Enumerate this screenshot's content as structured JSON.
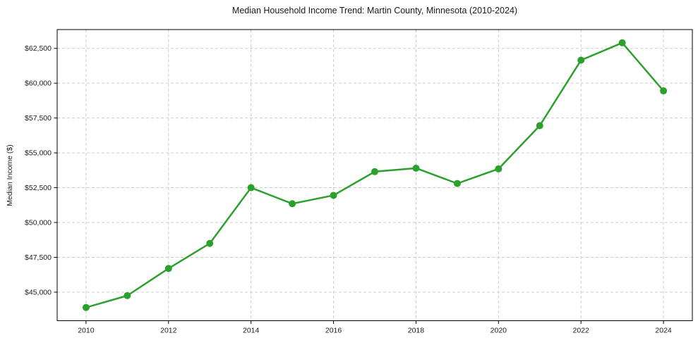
{
  "window": {
    "background_color": "#ffffff"
  },
  "chart_data": {
    "type": "line",
    "title": "Median Household Income Trend: Martin County, Minnesota (2010-2024)",
    "xlabel": "",
    "ylabel": "Median Income ($)",
    "x": [
      2010,
      2011,
      2012,
      2013,
      2014,
      2015,
      2016,
      2017,
      2018,
      2019,
      2020,
      2021,
      2022,
      2023,
      2024
    ],
    "values": [
      43900,
      44750,
      46700,
      48500,
      52500,
      51350,
      51950,
      53650,
      53900,
      52800,
      53850,
      56950,
      61650,
      62900,
      59450
    ],
    "x_ticks": [
      2010,
      2012,
      2014,
      2016,
      2018,
      2020,
      2022,
      2024
    ],
    "x_tick_labels": [
      "2010",
      "2012",
      "2014",
      "2016",
      "2018",
      "2020",
      "2022",
      "2024"
    ],
    "y_ticks": [
      45000,
      47500,
      50000,
      52500,
      55000,
      57500,
      60000,
      62500
    ],
    "y_tick_labels": [
      "$45,000",
      "$47,500",
      "$50,000",
      "$52,500",
      "$55,000",
      "$57,500",
      "$60,000",
      "$62,500"
    ],
    "xlim": [
      2009.3,
      2024.7
    ],
    "ylim": [
      42950,
      63850
    ],
    "grid": true,
    "grid_style": "dashed",
    "legend_position": "none",
    "line_color": "#2ca02c",
    "marker": "circle",
    "marker_color": "#2ca02c",
    "grid_color": "#cccccc",
    "axis_color": "#000000",
    "text_color": "#1a1a1a"
  }
}
